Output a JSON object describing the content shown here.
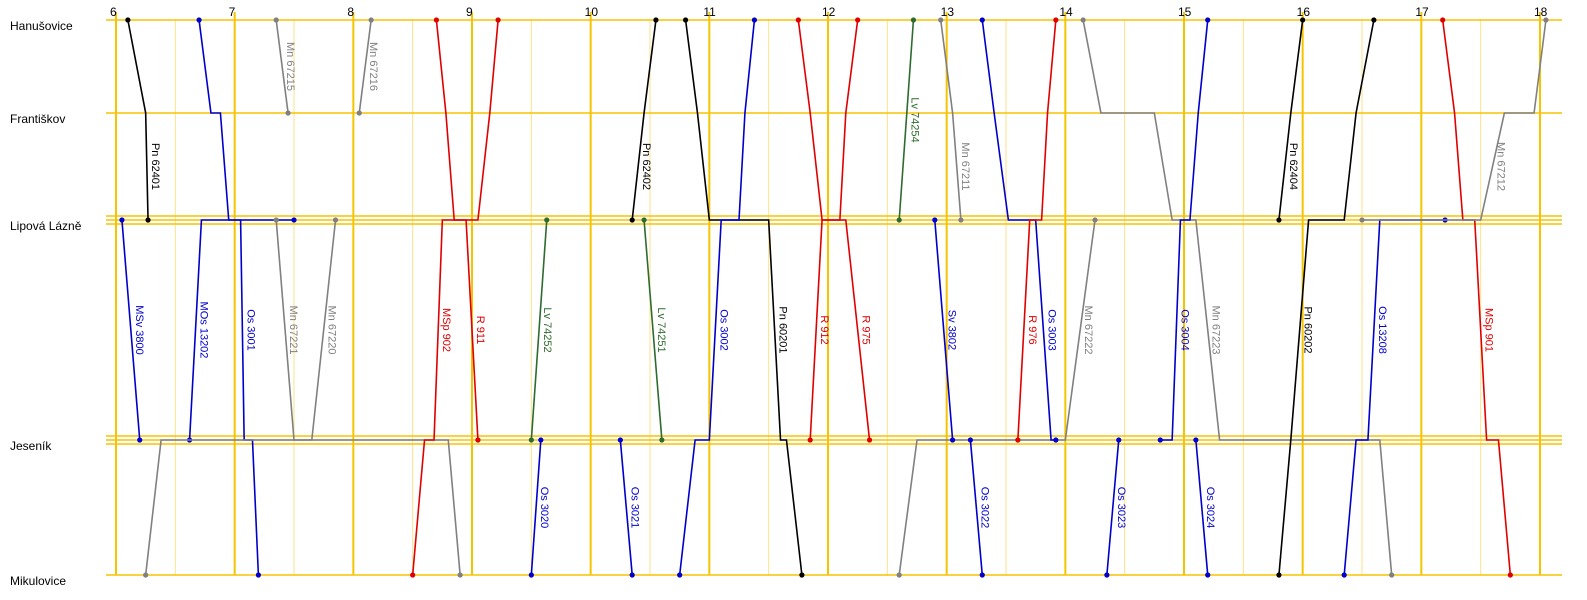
{
  "chart_data": {
    "type": "line",
    "x_unit": "hour",
    "hours": [
      6,
      7,
      8,
      9,
      10,
      11,
      12,
      13,
      14,
      15,
      16,
      17,
      18
    ],
    "stations": [
      {
        "name": "Hanušovice",
        "km": 0
      },
      {
        "name": "Františkov",
        "km": 9
      },
      {
        "name": "Lipová Lázně",
        "km": 18.5
      },
      {
        "name": "Jeseník",
        "km": 40
      },
      {
        "name": "Mikulovice",
        "km": 53
      }
    ],
    "colors": {
      "Pn": "#000000",
      "Os": "#0000cc",
      "MOs": "#0000cc",
      "MSv": "#0000cc",
      "Sv": "#0000cc",
      "R": "#e00000",
      "MSp": "#e00000",
      "Mn": "#808080",
      "Lv": "#2e6b2e",
      "grid": "#f5c400",
      "grid_minor": "#fde28a"
    },
    "trains": [
      {
        "name": "Pn 62401",
        "color": "#000000",
        "points": [
          [
            6.1,
            0
          ],
          [
            6.25,
            9
          ],
          [
            6.27,
            18.5
          ]
        ]
      },
      {
        "name": "Os 3001",
        "color": "#0000cc",
        "points": [
          [
            6.7,
            0
          ],
          [
            6.8,
            9
          ],
          [
            6.88,
            9
          ],
          [
            6.95,
            18.5
          ],
          [
            7.05,
            18.5
          ],
          [
            7.08,
            40
          ],
          [
            7.15,
            40
          ],
          [
            7.2,
            53
          ]
        ]
      },
      {
        "name": "Mn 67215",
        "color": "#808080",
        "points": [
          [
            7.35,
            0
          ],
          [
            7.45,
            9
          ]
        ]
      },
      {
        "name": "Mn 67216",
        "color": "#808080",
        "points": [
          [
            8.05,
            9
          ],
          [
            8.15,
            0
          ]
        ]
      },
      {
        "name": "MSv 3800",
        "color": "#0000cc",
        "points": [
          [
            6.05,
            18.5
          ],
          [
            6.2,
            40
          ]
        ]
      },
      {
        "name": "MOs 13202",
        "color": "#0000cc",
        "points": [
          [
            6.62,
            40
          ],
          [
            6.72,
            18.5
          ],
          [
            7.5,
            18.5
          ]
        ]
      },
      {
        "name": "Mn 67221",
        "color": "#808080",
        "points": [
          [
            7.35,
            18.5
          ],
          [
            7.5,
            40
          ],
          [
            8.3,
            40
          ],
          [
            8.8,
            40
          ],
          [
            8.9,
            53
          ]
        ]
      },
      {
        "name": "Mn 67220",
        "color": "#808080",
        "points": [
          [
            6.25,
            53
          ],
          [
            6.38,
            40
          ],
          [
            7.5,
            40
          ],
          [
            7.65,
            40
          ],
          [
            7.85,
            18.5
          ]
        ]
      },
      {
        "name": "R 911",
        "color": "#e00000",
        "points": [
          [
            8.7,
            0
          ],
          [
            8.78,
            9
          ],
          [
            8.85,
            18.5
          ],
          [
            8.95,
            18.5
          ],
          [
            9.05,
            40
          ]
        ]
      },
      {
        "name": "MSp 902",
        "color": "#e00000",
        "points": [
          [
            8.5,
            53
          ],
          [
            8.6,
            40
          ],
          [
            8.68,
            40
          ],
          [
            8.75,
            18.5
          ],
          [
            9.05,
            18.5
          ],
          [
            9.15,
            9
          ],
          [
            9.22,
            0
          ]
        ]
      },
      {
        "name": "Lv 74252",
        "color": "#2e6b2e",
        "points": [
          [
            9.5,
            40
          ],
          [
            9.63,
            18.5
          ]
        ]
      },
      {
        "name": "Os 3020",
        "color": "#0000cc",
        "points": [
          [
            9.5,
            53
          ],
          [
            9.58,
            40
          ]
        ]
      },
      {
        "name": "Os 3021",
        "color": "#0000cc",
        "points": [
          [
            10.25,
            40
          ],
          [
            10.35,
            53
          ]
        ]
      },
      {
        "name": "Pn 62402",
        "color": "#000000",
        "points": [
          [
            10.35,
            18.5
          ],
          [
            10.45,
            9
          ],
          [
            10.55,
            0
          ]
        ]
      },
      {
        "name": "Lv 74251",
        "color": "#2e6b2e",
        "points": [
          [
            10.45,
            18.5
          ],
          [
            10.6,
            40
          ]
        ]
      },
      {
        "name": "Pn 60201",
        "color": "#000000",
        "points": [
          [
            10.8,
            0
          ],
          [
            10.9,
            9
          ],
          [
            11.0,
            18.5
          ],
          [
            11.5,
            18.5
          ],
          [
            11.6,
            40
          ],
          [
            11.65,
            40
          ],
          [
            11.78,
            53
          ]
        ]
      },
      {
        "name": "Os 3002",
        "color": "#0000cc",
        "points": [
          [
            10.75,
            53
          ],
          [
            10.88,
            40
          ],
          [
            11.0,
            40
          ],
          [
            11.1,
            18.5
          ],
          [
            11.25,
            18.5
          ],
          [
            11.3,
            9
          ],
          [
            11.38,
            0
          ]
        ]
      },
      {
        "name": "R 975",
        "color": "#e00000",
        "points": [
          [
            11.75,
            0
          ],
          [
            11.85,
            9
          ],
          [
            11.95,
            18.5
          ],
          [
            12.15,
            18.5
          ],
          [
            12.35,
            40
          ]
        ]
      },
      {
        "name": "R 912",
        "color": "#e00000",
        "points": [
          [
            11.85,
            40
          ],
          [
            11.95,
            18.5
          ],
          [
            12.1,
            18.5
          ],
          [
            12.15,
            9
          ],
          [
            12.25,
            0
          ]
        ]
      },
      {
        "name": "Lv 74254",
        "color": "#2e6b2e",
        "points": [
          [
            12.6,
            18.5
          ],
          [
            12.72,
            0
          ]
        ]
      },
      {
        "name": "Mn 67211",
        "color": "#808080",
        "points": [
          [
            12.95,
            0
          ],
          [
            13.05,
            9
          ],
          [
            13.12,
            18.5
          ]
        ]
      },
      {
        "name": "Mn 67222",
        "color": "#808080",
        "points": [
          [
            12.6,
            53
          ],
          [
            12.75,
            40
          ],
          [
            13.8,
            40
          ],
          [
            14.0,
            40
          ],
          [
            14.25,
            18.5
          ]
        ]
      },
      {
        "name": "Sv 3802",
        "color": "#0000cc",
        "points": [
          [
            12.9,
            18.5
          ],
          [
            13.05,
            40
          ]
        ]
      },
      {
        "name": "Os 3022",
        "color": "#0000cc",
        "points": [
          [
            13.2,
            40
          ],
          [
            13.3,
            53
          ]
        ]
      },
      {
        "name": "Os 3003",
        "color": "#0000cc",
        "points": [
          [
            13.3,
            0
          ],
          [
            13.4,
            9
          ],
          [
            13.52,
            18.5
          ],
          [
            13.75,
            18.5
          ],
          [
            13.88,
            40
          ],
          [
            13.92,
            40
          ]
        ]
      },
      {
        "name": "R 976",
        "color": "#e00000",
        "points": [
          [
            13.6,
            40
          ],
          [
            13.7,
            18.5
          ],
          [
            13.8,
            18.5
          ],
          [
            13.85,
            9
          ],
          [
            13.92,
            0
          ]
        ]
      },
      {
        "name": "Mn 67223",
        "color": "#808080",
        "points": [
          [
            14.15,
            0
          ],
          [
            14.3,
            9
          ],
          [
            14.75,
            9
          ],
          [
            14.9,
            18.5
          ],
          [
            15.1,
            18.5
          ],
          [
            15.3,
            40
          ],
          [
            16.55,
            40
          ],
          [
            16.65,
            40
          ],
          [
            16.75,
            53
          ]
        ]
      },
      {
        "name": "Os 3023",
        "color": "#0000cc",
        "points": [
          [
            14.35,
            53
          ],
          [
            14.45,
            40
          ]
        ]
      },
      {
        "name": "Os 3004",
        "color": "#0000cc",
        "points": [
          [
            14.8,
            40
          ],
          [
            14.9,
            40
          ],
          [
            14.97,
            18.5
          ],
          [
            15.05,
            18.5
          ],
          [
            15.12,
            9
          ],
          [
            15.2,
            0
          ]
        ]
      },
      {
        "name": "Os 3024",
        "color": "#0000cc",
        "points": [
          [
            15.1,
            40
          ],
          [
            15.2,
            53
          ]
        ]
      },
      {
        "name": "Pn 62404",
        "color": "#000000",
        "points": [
          [
            15.8,
            18.5
          ],
          [
            15.9,
            9
          ],
          [
            16.0,
            0
          ]
        ]
      },
      {
        "name": "Pn 60202",
        "color": "#000000",
        "points": [
          [
            15.8,
            53
          ],
          [
            15.9,
            40
          ],
          [
            16.05,
            18.5
          ],
          [
            16.35,
            18.5
          ],
          [
            16.45,
            9
          ],
          [
            16.6,
            0
          ]
        ]
      },
      {
        "name": "Os 13208",
        "color": "#0000cc",
        "points": [
          [
            16.35,
            53
          ],
          [
            16.45,
            40
          ],
          [
            16.55,
            40
          ],
          [
            16.65,
            18.5
          ],
          [
            17.2,
            18.5
          ]
        ]
      },
      {
        "name": "MSp 901",
        "color": "#e00000",
        "points": [
          [
            17.18,
            0
          ],
          [
            17.28,
            9
          ],
          [
            17.35,
            18.5
          ],
          [
            17.45,
            18.5
          ],
          [
            17.55,
            40
          ],
          [
            17.65,
            40
          ],
          [
            17.75,
            53
          ]
        ]
      },
      {
        "name": "Mn 67212",
        "color": "#808080",
        "points": [
          [
            16.5,
            18.5
          ],
          [
            17.3,
            18.5
          ],
          [
            17.5,
            18.5
          ],
          [
            17.7,
            9
          ],
          [
            17.95,
            9
          ],
          [
            18.05,
            0
          ]
        ]
      }
    ]
  }
}
